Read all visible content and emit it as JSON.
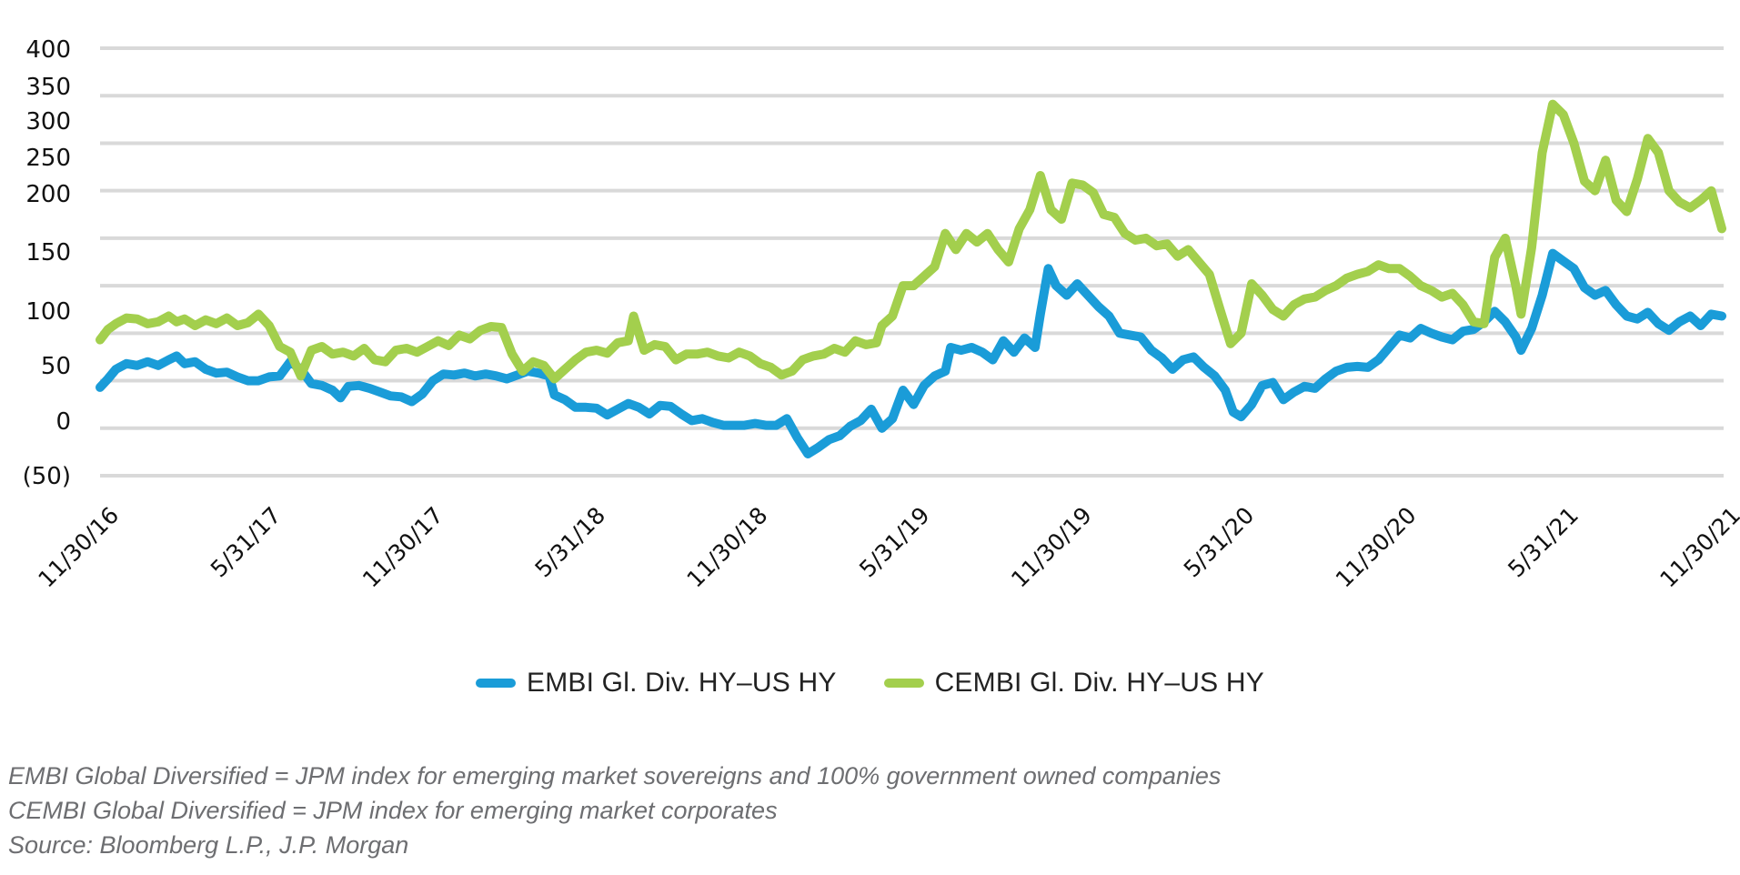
{
  "chart_data": {
    "type": "line",
    "title": "",
    "xlabel": "",
    "ylabel": "",
    "ylim": [
      -50,
      400
    ],
    "yticks": [
      400,
      350,
      300,
      250,
      200,
      150,
      100,
      50,
      0,
      -50
    ],
    "ytick_labels": [
      "400",
      "350",
      "300",
      "250",
      "200",
      "150",
      "100",
      "50",
      "0",
      "(50)"
    ],
    "xlim_months": [
      0,
      60
    ],
    "xtick_labels": [
      "11/30/16",
      "5/31/17",
      "11/30/17",
      "5/31/18",
      "11/30/18",
      "5/31/19",
      "11/30/19",
      "5/31/20",
      "11/30/20",
      "5/31/21",
      "11/30/21"
    ],
    "x_unit": "months since 11/30/16",
    "grid": true,
    "legend_position": "bottom",
    "series": [
      {
        "name": "EMBI Gl. Div. HY–US HY",
        "color": "#1a9cd8",
        "points": [
          [
            0,
            43
          ],
          [
            0.3,
            52
          ],
          [
            0.6,
            62
          ],
          [
            1,
            68
          ],
          [
            1.4,
            66
          ],
          [
            1.8,
            70
          ],
          [
            2.2,
            66
          ],
          [
            2.6,
            72
          ],
          [
            2.9,
            76
          ],
          [
            3.2,
            68
          ],
          [
            3.6,
            70
          ],
          [
            4,
            62
          ],
          [
            4.4,
            58
          ],
          [
            4.8,
            59
          ],
          [
            5.2,
            54
          ],
          [
            5.6,
            50
          ],
          [
            6,
            50
          ],
          [
            6.4,
            54
          ],
          [
            6.8,
            55
          ],
          [
            7.2,
            70
          ],
          [
            7.6,
            62
          ],
          [
            8,
            47
          ],
          [
            8.4,
            45
          ],
          [
            8.8,
            40
          ],
          [
            9.1,
            32
          ],
          [
            9.4,
            44
          ],
          [
            9.8,
            45
          ],
          [
            10.2,
            42
          ],
          [
            10.6,
            38
          ],
          [
            11,
            34
          ],
          [
            11.4,
            33
          ],
          [
            11.8,
            28
          ],
          [
            12.2,
            36
          ],
          [
            12.6,
            50
          ],
          [
            13,
            57
          ],
          [
            13.4,
            56
          ],
          [
            13.8,
            58
          ],
          [
            14.2,
            55
          ],
          [
            14.6,
            57
          ],
          [
            15,
            55
          ],
          [
            15.4,
            52
          ],
          [
            15.8,
            56
          ],
          [
            16.2,
            60
          ],
          [
            16.6,
            58
          ],
          [
            17,
            55
          ],
          [
            17.2,
            35
          ],
          [
            17.6,
            30
          ],
          [
            18,
            22
          ],
          [
            18.4,
            22
          ],
          [
            18.8,
            21
          ],
          [
            19.2,
            14
          ],
          [
            19.6,
            20
          ],
          [
            20,
            26
          ],
          [
            20.4,
            22
          ],
          [
            20.8,
            15
          ],
          [
            21.2,
            24
          ],
          [
            21.6,
            23
          ],
          [
            22,
            15
          ],
          [
            22.4,
            8
          ],
          [
            22.8,
            10
          ],
          [
            23.2,
            6
          ],
          [
            23.6,
            3
          ],
          [
            24,
            3
          ],
          [
            24.4,
            3
          ],
          [
            24.8,
            5
          ],
          [
            25.2,
            3
          ],
          [
            25.6,
            3
          ],
          [
            26,
            10
          ],
          [
            26.4,
            -10
          ],
          [
            26.8,
            -27
          ],
          [
            27.2,
            -20
          ],
          [
            27.6,
            -12
          ],
          [
            28,
            -8
          ],
          [
            28.4,
            2
          ],
          [
            28.8,
            8
          ],
          [
            29.2,
            20
          ],
          [
            29.6,
            0
          ],
          [
            30,
            10
          ],
          [
            30.4,
            40
          ],
          [
            30.8,
            25
          ],
          [
            31.2,
            45
          ],
          [
            31.6,
            55
          ],
          [
            32,
            60
          ],
          [
            32.2,
            85
          ],
          [
            32.6,
            82
          ],
          [
            33,
            85
          ],
          [
            33.4,
            80
          ],
          [
            33.8,
            72
          ],
          [
            34.2,
            92
          ],
          [
            34.6,
            80
          ],
          [
            35,
            95
          ],
          [
            35.4,
            85
          ],
          [
            35.6,
            120
          ],
          [
            35.9,
            168
          ],
          [
            36.2,
            150
          ],
          [
            36.6,
            140
          ],
          [
            37,
            152
          ],
          [
            37.4,
            140
          ],
          [
            37.8,
            128
          ],
          [
            38.2,
            118
          ],
          [
            38.6,
            100
          ],
          [
            39,
            98
          ],
          [
            39.4,
            96
          ],
          [
            39.8,
            82
          ],
          [
            40.2,
            74
          ],
          [
            40.6,
            62
          ],
          [
            41,
            72
          ],
          [
            41.4,
            75
          ],
          [
            41.8,
            64
          ],
          [
            42.2,
            55
          ],
          [
            42.6,
            40
          ],
          [
            42.9,
            17
          ],
          [
            43.2,
            12
          ],
          [
            43.6,
            25
          ],
          [
            44,
            45
          ],
          [
            44.4,
            48
          ],
          [
            44.8,
            30
          ],
          [
            45.2,
            38
          ],
          [
            45.6,
            44
          ],
          [
            46,
            42
          ],
          [
            46.4,
            52
          ],
          [
            46.8,
            60
          ],
          [
            47.2,
            64
          ],
          [
            47.6,
            65
          ],
          [
            48,
            64
          ],
          [
            48.4,
            72
          ],
          [
            48.8,
            85
          ],
          [
            49.2,
            98
          ],
          [
            49.6,
            95
          ],
          [
            50,
            105
          ],
          [
            50.4,
            100
          ],
          [
            50.8,
            96
          ],
          [
            51.2,
            93
          ],
          [
            51.6,
            102
          ],
          [
            52,
            104
          ],
          [
            52.4,
            112
          ],
          [
            52.8,
            123
          ],
          [
            53.2,
            112
          ],
          [
            53.6,
            96
          ],
          [
            53.8,
            82
          ],
          [
            54.2,
            105
          ],
          [
            54.6,
            140
          ],
          [
            55,
            184
          ],
          [
            55.4,
            176
          ],
          [
            55.8,
            168
          ],
          [
            56.2,
            148
          ],
          [
            56.6,
            140
          ],
          [
            57,
            145
          ],
          [
            57.4,
            130
          ],
          [
            57.8,
            118
          ],
          [
            58.2,
            115
          ],
          [
            58.6,
            122
          ],
          [
            59,
            110
          ],
          [
            59.4,
            103
          ],
          [
            59.8,
            112
          ],
          [
            60.2,
            118
          ],
          [
            60.6,
            108
          ],
          [
            61,
            120
          ],
          [
            61.4,
            118
          ]
        ]
      },
      {
        "name": "CEMBI Gl. Div. HY–US HY",
        "color": "#a3cf4d",
        "points": [
          [
            0,
            93
          ],
          [
            0.3,
            104
          ],
          [
            0.6,
            110
          ],
          [
            1,
            116
          ],
          [
            1.4,
            115
          ],
          [
            1.8,
            110
          ],
          [
            2.2,
            112
          ],
          [
            2.6,
            118
          ],
          [
            2.9,
            112
          ],
          [
            3.2,
            115
          ],
          [
            3.6,
            108
          ],
          [
            4,
            114
          ],
          [
            4.4,
            110
          ],
          [
            4.8,
            116
          ],
          [
            5.2,
            108
          ],
          [
            5.6,
            111
          ],
          [
            6,
            120
          ],
          [
            6.4,
            108
          ],
          [
            6.8,
            86
          ],
          [
            7.2,
            80
          ],
          [
            7.6,
            55
          ],
          [
            8,
            82
          ],
          [
            8.4,
            86
          ],
          [
            8.8,
            78
          ],
          [
            9.2,
            80
          ],
          [
            9.6,
            76
          ],
          [
            10,
            84
          ],
          [
            10.4,
            72
          ],
          [
            10.8,
            70
          ],
          [
            11.2,
            82
          ],
          [
            11.6,
            84
          ],
          [
            12,
            80
          ],
          [
            12.4,
            86
          ],
          [
            12.8,
            92
          ],
          [
            13.2,
            87
          ],
          [
            13.6,
            98
          ],
          [
            14,
            94
          ],
          [
            14.4,
            103
          ],
          [
            14.8,
            107
          ],
          [
            15.2,
            106
          ],
          [
            15.6,
            78
          ],
          [
            16,
            60
          ],
          [
            16.4,
            70
          ],
          [
            16.8,
            66
          ],
          [
            17.2,
            52
          ],
          [
            17.6,
            62
          ],
          [
            18,
            72
          ],
          [
            18.4,
            80
          ],
          [
            18.8,
            82
          ],
          [
            19.2,
            79
          ],
          [
            19.6,
            90
          ],
          [
            20,
            92
          ],
          [
            20.2,
            118
          ],
          [
            20.6,
            82
          ],
          [
            21,
            88
          ],
          [
            21.4,
            86
          ],
          [
            21.8,
            72
          ],
          [
            22.2,
            78
          ],
          [
            22.6,
            78
          ],
          [
            23,
            80
          ],
          [
            23.4,
            76
          ],
          [
            23.8,
            74
          ],
          [
            24.2,
            80
          ],
          [
            24.6,
            76
          ],
          [
            25,
            68
          ],
          [
            25.4,
            64
          ],
          [
            25.8,
            56
          ],
          [
            26.2,
            60
          ],
          [
            26.6,
            72
          ],
          [
            27,
            76
          ],
          [
            27.4,
            78
          ],
          [
            27.8,
            84
          ],
          [
            28.2,
            80
          ],
          [
            28.6,
            92
          ],
          [
            29,
            88
          ],
          [
            29.4,
            90
          ],
          [
            29.6,
            108
          ],
          [
            30,
            118
          ],
          [
            30.4,
            150
          ],
          [
            30.8,
            150
          ],
          [
            31.2,
            160
          ],
          [
            31.6,
            170
          ],
          [
            32,
            205
          ],
          [
            32.4,
            188
          ],
          [
            32.8,
            205
          ],
          [
            33.2,
            196
          ],
          [
            33.6,
            205
          ],
          [
            34,
            188
          ],
          [
            34.4,
            175
          ],
          [
            34.8,
            210
          ],
          [
            35.2,
            230
          ],
          [
            35.6,
            266
          ],
          [
            36,
            230
          ],
          [
            36.4,
            220
          ],
          [
            36.8,
            258
          ],
          [
            37.2,
            256
          ],
          [
            37.6,
            248
          ],
          [
            38,
            225
          ],
          [
            38.4,
            222
          ],
          [
            38.8,
            205
          ],
          [
            39.2,
            198
          ],
          [
            39.6,
            200
          ],
          [
            40,
            192
          ],
          [
            40.4,
            194
          ],
          [
            40.8,
            181
          ],
          [
            41.2,
            188
          ],
          [
            41.6,
            175
          ],
          [
            42,
            162
          ],
          [
            42.4,
            125
          ],
          [
            42.8,
            89
          ],
          [
            43.2,
            100
          ],
          [
            43.6,
            152
          ],
          [
            44,
            140
          ],
          [
            44.4,
            125
          ],
          [
            44.8,
            118
          ],
          [
            45.2,
            130
          ],
          [
            45.6,
            136
          ],
          [
            46,
            138
          ],
          [
            46.4,
            145
          ],
          [
            46.8,
            150
          ],
          [
            47.2,
            158
          ],
          [
            47.6,
            162
          ],
          [
            48,
            165
          ],
          [
            48.4,
            172
          ],
          [
            48.8,
            168
          ],
          [
            49.2,
            168
          ],
          [
            49.6,
            160
          ],
          [
            50,
            150
          ],
          [
            50.4,
            145
          ],
          [
            50.8,
            138
          ],
          [
            51.2,
            142
          ],
          [
            51.6,
            130
          ],
          [
            52,
            112
          ],
          [
            52.4,
            110
          ],
          [
            52.8,
            180
          ],
          [
            53.2,
            200
          ],
          [
            53.6,
            150
          ],
          [
            53.8,
            120
          ],
          [
            54.2,
            190
          ],
          [
            54.6,
            290
          ],
          [
            55,
            341
          ],
          [
            55.4,
            330
          ],
          [
            55.8,
            300
          ],
          [
            56.2,
            260
          ],
          [
            56.6,
            250
          ],
          [
            57,
            282
          ],
          [
            57.4,
            240
          ],
          [
            57.8,
            228
          ],
          [
            58.2,
            262
          ],
          [
            58.6,
            305
          ],
          [
            59,
            290
          ],
          [
            59.4,
            250
          ],
          [
            59.8,
            238
          ],
          [
            60.2,
            232
          ],
          [
            60.6,
            240
          ],
          [
            61,
            250
          ],
          [
            61.4,
            210
          ]
        ]
      }
    ]
  },
  "legend": {
    "items": [
      {
        "label": "EMBI Gl. Div. HY–US HY",
        "color": "#1a9cd8"
      },
      {
        "label": "CEMBI Gl. Div. HY–US HY",
        "color": "#a3cf4d"
      }
    ]
  },
  "notes": [
    "EMBI Global Diversified = JPM index for emerging market sovereigns and 100% government owned companies",
    "CEMBI Global Diversified = JPM index for emerging market corporates",
    "Source: Bloomberg L.P., J.P. Morgan"
  ]
}
